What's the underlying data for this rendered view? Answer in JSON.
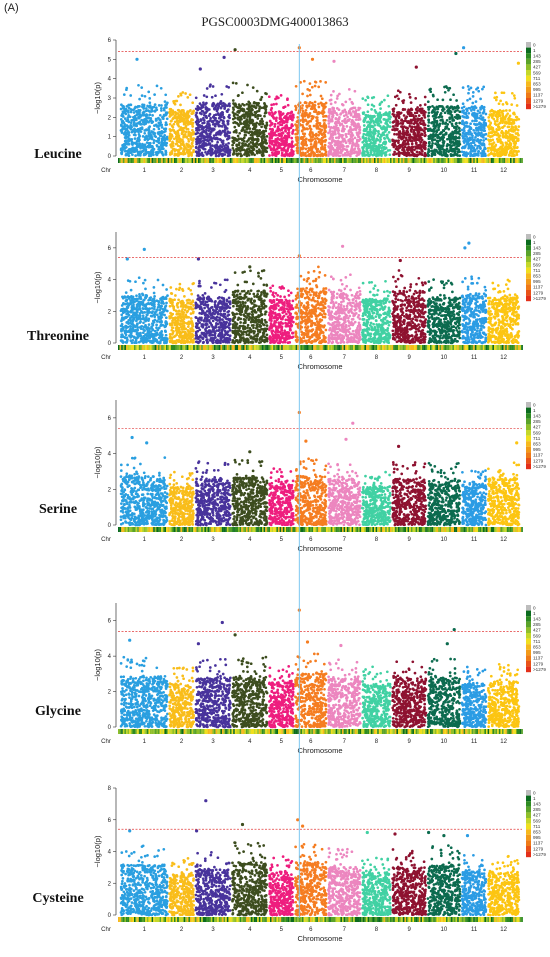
{
  "figure": {
    "panel_label": "(A)",
    "title": "PGSC0003DMG400013863"
  },
  "colors": {
    "chromosomes": [
      "#2a9fe0",
      "#f9bd1a",
      "#48339c",
      "#3d4d1f",
      "#ee1e7e",
      "#f57d21",
      "#ec86bf",
      "#41d1a3",
      "#8e1230",
      "#0c6b4f",
      "#2b9ce4",
      "#fcc512"
    ],
    "threshold_line": "#e23b3b",
    "highlight_line": "#6ec1ef",
    "density_scale": [
      "#bdbdbd",
      "#0b6b1e",
      "#2e8b22",
      "#5aa32a",
      "#8fbf2a",
      "#c4d72a",
      "#f0df1f",
      "#f6b91c",
      "#f39a18",
      "#ef7a17",
      "#e95218",
      "#e3301a",
      "#d40f1a"
    ]
  },
  "density_legend_labels": [
    "0",
    "1",
    "143",
    "285",
    "427",
    "569",
    "711",
    "853",
    "995",
    "1137",
    "1279",
    ">1279"
  ],
  "chart_data": [
    {
      "type": "scatter",
      "trait": "Leucine",
      "xlabel": "Chromosome",
      "ylabel": "−log10(p)",
      "ylim": [
        0,
        6
      ],
      "yticks": [
        0,
        1,
        2,
        3,
        4,
        5,
        6
      ],
      "chr_label": "Chr",
      "categories": [
        "1",
        "2",
        "3",
        "4",
        "5",
        "6",
        "7",
        "8",
        "9",
        "10",
        "11",
        "12"
      ],
      "threshold": 5.4,
      "highlight_chromosome_position": 6.15,
      "typical_max": [
        3.7,
        3.3,
        3.8,
        3.8,
        3.2,
        3.9,
        3.5,
        3.2,
        3.4,
        3.6,
        3.6,
        3.3
      ],
      "top_hits": [
        {
          "chr": "1",
          "pos": 0.35,
          "p": 5.0
        },
        {
          "chr": "3",
          "pos": 0.15,
          "p": 4.5
        },
        {
          "chr": "3",
          "pos": 0.8,
          "p": 5.1
        },
        {
          "chr": "4",
          "pos": 0.1,
          "p": 5.5
        },
        {
          "chr": "6",
          "pos": 0.15,
          "p": 5.6
        },
        {
          "chr": "6",
          "pos": 0.55,
          "p": 5.0
        },
        {
          "chr": "7",
          "pos": 0.2,
          "p": 4.9
        },
        {
          "chr": "9",
          "pos": 0.7,
          "p": 4.6
        },
        {
          "chr": "10",
          "pos": 0.85,
          "p": 5.3
        },
        {
          "chr": "11",
          "pos": 0.1,
          "p": 5.6
        },
        {
          "chr": "12",
          "pos": 0.95,
          "p": 4.8
        }
      ]
    },
    {
      "type": "scatter",
      "trait": "Threonine",
      "xlabel": "Chromosome",
      "ylabel": "−log10(p)",
      "ylim": [
        0,
        7
      ],
      "yticks": [
        0,
        2,
        4,
        6
      ],
      "chr_label": "Chr",
      "categories": [
        "1",
        "2",
        "3",
        "4",
        "5",
        "6",
        "7",
        "8",
        "9",
        "10",
        "11",
        "12"
      ],
      "threshold": 5.4,
      "highlight_chromosome_position": 6.15,
      "typical_max": [
        4.2,
        3.8,
        4.0,
        4.6,
        3.8,
        4.8,
        4.4,
        3.9,
        4.6,
        4.0,
        4.2,
        4.0
      ],
      "top_hits": [
        {
          "chr": "1",
          "pos": 0.5,
          "p": 5.9
        },
        {
          "chr": "1",
          "pos": 0.15,
          "p": 5.3
        },
        {
          "chr": "3",
          "pos": 0.1,
          "p": 5.3
        },
        {
          "chr": "4",
          "pos": 0.5,
          "p": 4.8
        },
        {
          "chr": "6",
          "pos": 0.15,
          "p": 5.5
        },
        {
          "chr": "7",
          "pos": 0.45,
          "p": 6.1
        },
        {
          "chr": "9",
          "pos": 0.25,
          "p": 5.2
        },
        {
          "chr": "11",
          "pos": 0.15,
          "p": 6.0
        },
        {
          "chr": "11",
          "pos": 0.3,
          "p": 6.3
        }
      ]
    },
    {
      "type": "scatter",
      "trait": "Serine",
      "xlabel": "Chromosome",
      "ylabel": "−log10(p)",
      "ylim": [
        0,
        7
      ],
      "yticks": [
        0,
        2,
        4,
        6
      ],
      "chr_label": "Chr",
      "categories": [
        "1",
        "2",
        "3",
        "4",
        "5",
        "6",
        "7",
        "8",
        "9",
        "10",
        "11",
        "12"
      ],
      "threshold": 5.4,
      "highlight_chromosome_position": 6.15,
      "typical_max": [
        3.8,
        3.0,
        3.6,
        3.7,
        3.2,
        3.8,
        3.6,
        3.0,
        3.6,
        3.5,
        3.2,
        3.6
      ],
      "top_hits": [
        {
          "chr": "1",
          "pos": 0.25,
          "p": 4.9
        },
        {
          "chr": "1",
          "pos": 0.55,
          "p": 4.6
        },
        {
          "chr": "4",
          "pos": 0.5,
          "p": 4.1
        },
        {
          "chr": "6",
          "pos": 0.15,
          "p": 6.3
        },
        {
          "chr": "6",
          "pos": 0.35,
          "p": 4.7
        },
        {
          "chr": "7",
          "pos": 0.75,
          "p": 5.7
        },
        {
          "chr": "7",
          "pos": 0.55,
          "p": 4.8
        },
        {
          "chr": "9",
          "pos": 0.2,
          "p": 4.4
        },
        {
          "chr": "12",
          "pos": 0.9,
          "p": 4.6
        }
      ]
    },
    {
      "type": "scatter",
      "trait": "Glycine",
      "xlabel": "Chromosome",
      "ylabel": "−log10(p)",
      "ylim": [
        0,
        7
      ],
      "yticks": [
        0,
        2,
        4,
        6
      ],
      "chr_label": "Chr",
      "categories": [
        "1",
        "2",
        "3",
        "4",
        "5",
        "6",
        "7",
        "8",
        "9",
        "10",
        "11",
        "12"
      ],
      "threshold": 5.4,
      "highlight_chromosome_position": 6.15,
      "typical_max": [
        4.0,
        3.4,
        3.9,
        4.0,
        3.5,
        4.2,
        3.8,
        3.4,
        3.8,
        3.9,
        3.4,
        3.6
      ],
      "top_hits": [
        {
          "chr": "1",
          "pos": 0.2,
          "p": 4.9
        },
        {
          "chr": "3",
          "pos": 0.1,
          "p": 4.7
        },
        {
          "chr": "3",
          "pos": 0.75,
          "p": 5.9
        },
        {
          "chr": "4",
          "pos": 0.1,
          "p": 5.2
        },
        {
          "chr": "6",
          "pos": 0.15,
          "p": 6.6
        },
        {
          "chr": "6",
          "pos": 0.4,
          "p": 4.8
        },
        {
          "chr": "7",
          "pos": 0.4,
          "p": 4.6
        },
        {
          "chr": "10",
          "pos": 0.8,
          "p": 5.5
        },
        {
          "chr": "10",
          "pos": 0.6,
          "p": 4.7
        }
      ]
    },
    {
      "type": "scatter",
      "trait": "Cysteine",
      "xlabel": "Chromosome",
      "ylabel": "−log10(p)",
      "ylim": [
        0,
        8
      ],
      "yticks": [
        0,
        2,
        4,
        6,
        8
      ],
      "chr_label": "Chr",
      "categories": [
        "1",
        "2",
        "3",
        "4",
        "5",
        "6",
        "7",
        "8",
        "9",
        "10",
        "11",
        "12"
      ],
      "threshold": 5.4,
      "highlight_chromosome_position": 6.15,
      "typical_max": [
        4.4,
        3.6,
        4.0,
        4.6,
        3.7,
        4.6,
        4.2,
        3.7,
        4.2,
        4.4,
        3.8,
        3.8
      ],
      "top_hits": [
        {
          "chr": "1",
          "pos": 0.2,
          "p": 5.3
        },
        {
          "chr": "3",
          "pos": 0.05,
          "p": 5.3
        },
        {
          "chr": "3",
          "pos": 0.3,
          "p": 7.2
        },
        {
          "chr": "4",
          "pos": 0.3,
          "p": 5.7
        },
        {
          "chr": "6",
          "pos": 0.1,
          "p": 6.0
        },
        {
          "chr": "6",
          "pos": 0.25,
          "p": 5.6
        },
        {
          "chr": "8",
          "pos": 0.2,
          "p": 5.2
        },
        {
          "chr": "9",
          "pos": 0.1,
          "p": 5.1
        },
        {
          "chr": "10",
          "pos": 0.05,
          "p": 5.2
        },
        {
          "chr": "10",
          "pos": 0.5,
          "p": 5.0
        },
        {
          "chr": "11",
          "pos": 0.25,
          "p": 5.0
        }
      ]
    }
  ]
}
